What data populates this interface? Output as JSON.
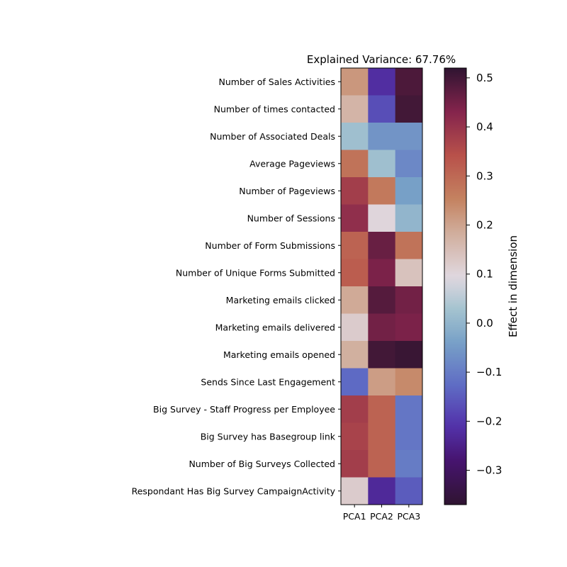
{
  "chart_data": {
    "type": "heatmap",
    "title": "Explained Variance: 67.76%",
    "columns": [
      "PCA1",
      "PCA2",
      "PCA3"
    ],
    "rows": [
      "Number of Sales Activities",
      "Number of times contacted",
      "Number of Associated Deals",
      "Average Pageviews",
      "Number of Pageviews",
      "Number of Sessions",
      "Number of Form Submissions",
      "Number of Unique Forms Submitted",
      "Marketing emails clicked",
      "Marketing emails delivered",
      "Marketing emails opened",
      "Sends Since Last Engagement",
      "Big Survey - Staff Progress per Employee",
      "Big Survey has Basegroup link",
      "Number of Big Surveys Collected",
      "Respondant Has Big Survey CampaignActivity"
    ],
    "values": [
      [
        0.22,
        -0.22,
        0.49
      ],
      [
        0.17,
        -0.17,
        0.5
      ],
      [
        0.02,
        -0.06,
        -0.06
      ],
      [
        0.28,
        0.02,
        -0.08
      ],
      [
        0.38,
        0.27,
        -0.04
      ],
      [
        0.41,
        0.1,
        0.0
      ],
      [
        0.31,
        0.46,
        0.28
      ],
      [
        0.32,
        0.44,
        0.14
      ],
      [
        0.19,
        0.48,
        0.45
      ],
      [
        0.12,
        0.45,
        0.44
      ],
      [
        0.18,
        0.5,
        0.51
      ],
      [
        -0.13,
        0.21,
        0.24
      ],
      [
        0.38,
        0.31,
        -0.11
      ],
      [
        0.37,
        0.31,
        -0.11
      ],
      [
        0.38,
        0.31,
        -0.1
      ],
      [
        0.12,
        -0.23,
        -0.15
      ]
    ],
    "colormap": "twilight_shifted",
    "vmin": -0.37,
    "vmax": 0.52,
    "colorbar": {
      "label": "Effect in dimension",
      "ticks": [
        0.5,
        0.4,
        0.3,
        0.2,
        0.1,
        0.0,
        -0.1,
        -0.2,
        -0.3
      ],
      "tick_labels": [
        "0.5",
        "0.4",
        "0.3",
        "0.2",
        "0.1",
        "0.0",
        "−0.1",
        "−0.2",
        "−0.3"
      ]
    }
  }
}
